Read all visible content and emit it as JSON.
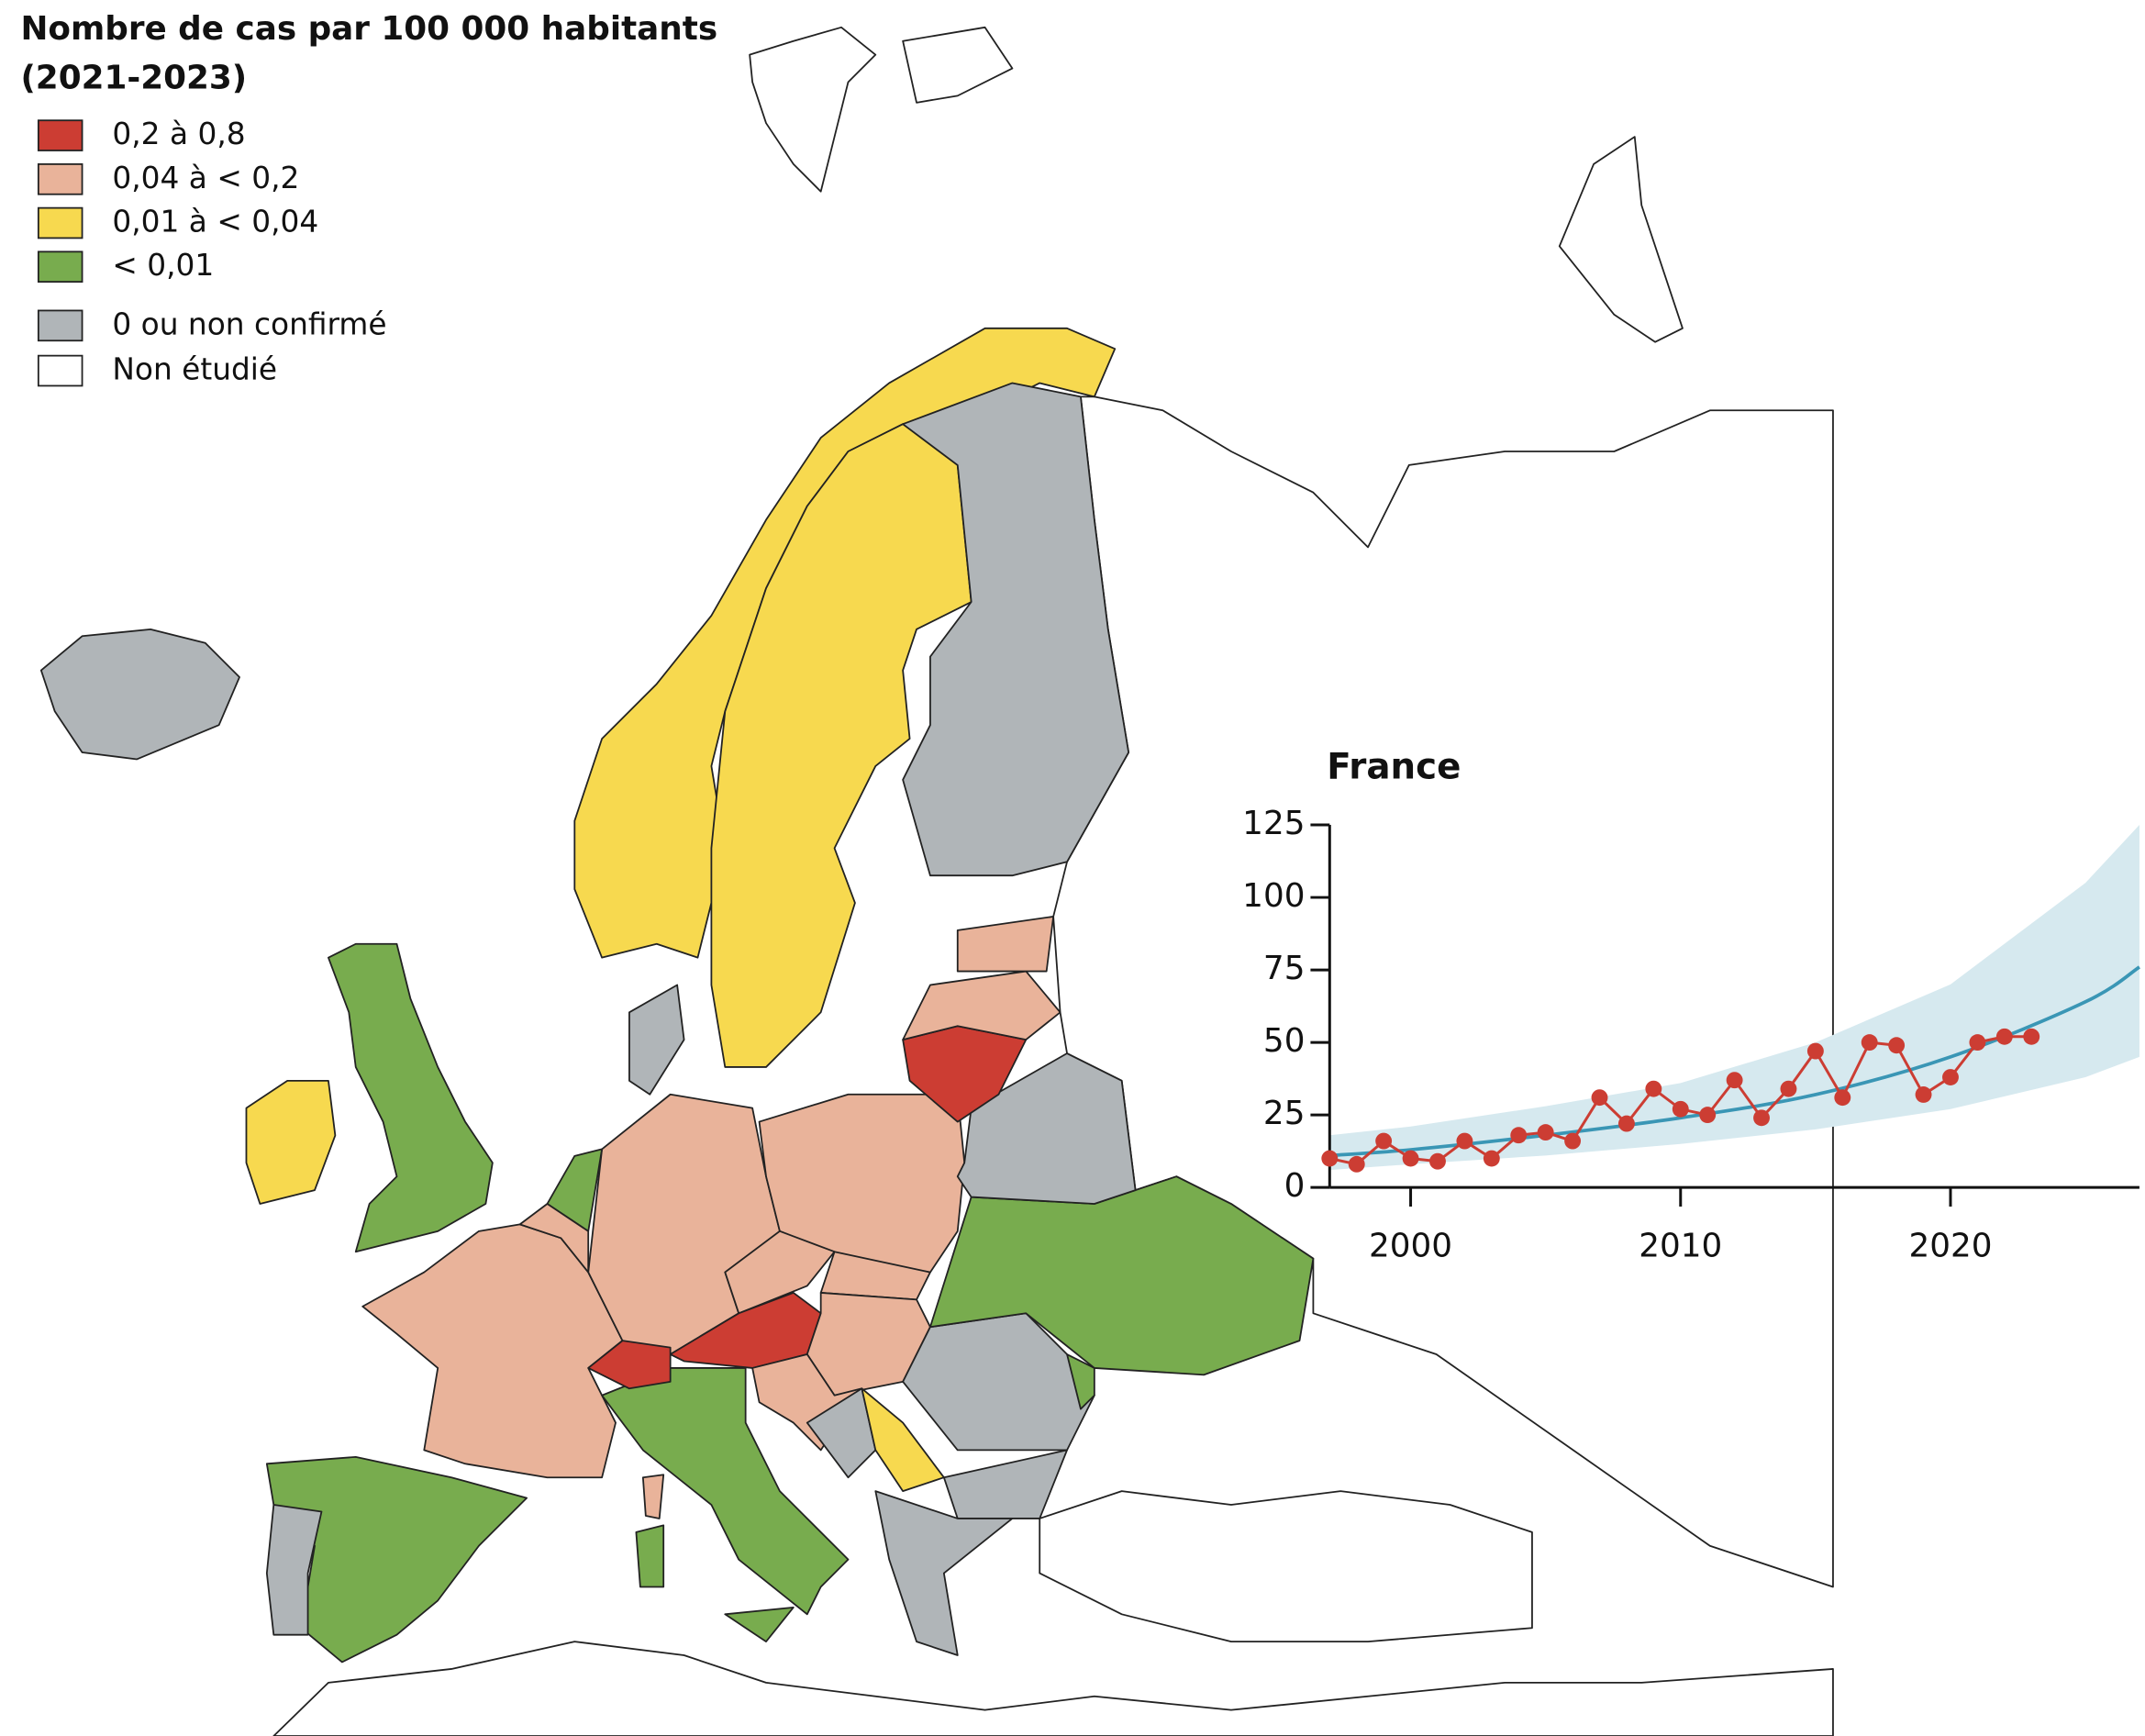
{
  "map": {
    "title": [
      "Nombre de cas par 100 000 habitants",
      "(2021-2023)"
    ],
    "legend": [
      {
        "label": "0,2 à 0,8",
        "color": "#cc3d33"
      },
      {
        "label": "0,04 à < 0,2",
        "color": "#e9b39a"
      },
      {
        "label": "0,01 à < 0,04",
        "color": "#f7d94f"
      },
      {
        "label": "< 0,01",
        "color": "#78ac4e"
      },
      {
        "label": "0 ou non confirmé",
        "color": "#b0b5b8"
      },
      {
        "label": "Non étudié",
        "color": "#ffffff"
      }
    ]
  },
  "chart_data": {
    "type": "line",
    "title": "France",
    "x": [
      1997,
      1998,
      1999,
      2000,
      2001,
      2002,
      2003,
      2004,
      2005,
      2006,
      2007,
      2008,
      2009,
      2010,
      2011,
      2012,
      2013,
      2014,
      2015,
      2016,
      2017,
      2018,
      2019,
      2020,
      2021,
      2022,
      2023
    ],
    "series": [
      {
        "color": "#cc3d33",
        "values": [
          10,
          8,
          16,
          10,
          9,
          16,
          10,
          18,
          19,
          16,
          31,
          22,
          34,
          27,
          25,
          37,
          24,
          34,
          47,
          31,
          50,
          49,
          32,
          38,
          50,
          52,
          52
        ]
      }
    ],
    "trend": {
      "color": "#3a96b5",
      "band_color": "#d6e9ef",
      "x": [
        1997,
        2000,
        2005,
        2010,
        2015,
        2020,
        2025,
        2027
      ],
      "values": [
        11,
        13,
        18,
        24,
        32,
        45,
        64,
        76
      ],
      "lower": [
        6,
        8,
        11,
        15,
        20,
        27,
        38,
        45
      ],
      "upper": [
        18,
        21,
        28,
        36,
        50,
        70,
        105,
        125
      ]
    },
    "xlim": [
      1997,
      2027
    ],
    "ylim": [
      0,
      125
    ],
    "xticks": [
      2000,
      2010,
      2020
    ],
    "yticks": [
      0,
      25,
      50,
      75,
      100,
      125
    ]
  }
}
